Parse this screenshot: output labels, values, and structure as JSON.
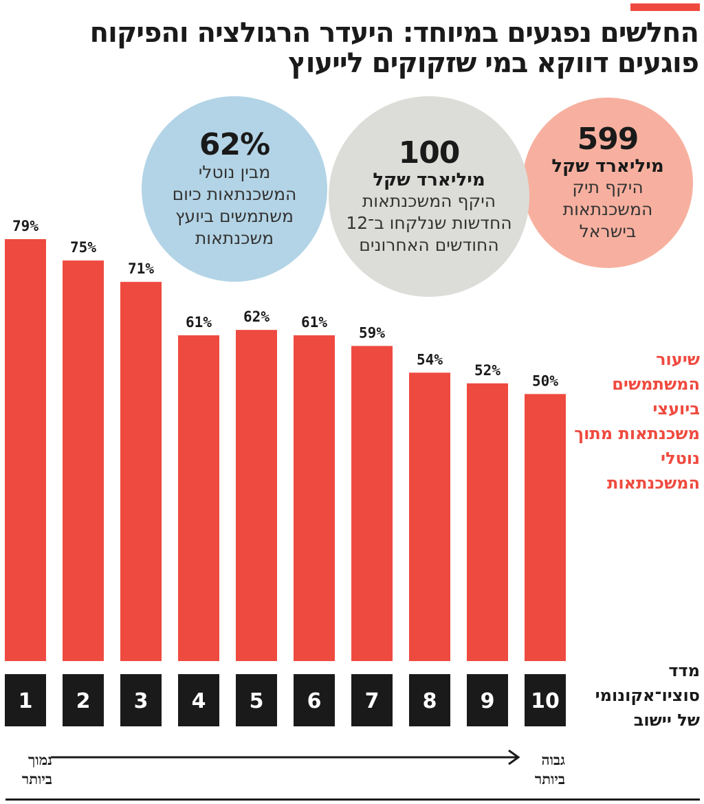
{
  "title": "החלשים נפגעים במיוחד: היעדר הרגולציה והפיקוח פוגעים דווקא במי שזקוקים לייעוץ",
  "colors": {
    "accent": "#ef4a3f",
    "bar": "#ef4a3f",
    "box": "#1a1a1a"
  },
  "stats": {
    "portfolio": {
      "value": "599",
      "unit": "מיליארד שקל",
      "desc": "היקף תיק המשכנתאות בישראל"
    },
    "new_mortgages": {
      "value": "100",
      "unit": "מיליארד שקל",
      "desc": "היקף המשכנתאות החדשות שנלקחו ב־12 החודשים האחרונים"
    },
    "advisor_use": {
      "value": "62%",
      "desc": "מבין נוטלי המשכנתאות כיום משתמשים ביועץ משכנתאות"
    }
  },
  "legend": "שיעור המשתמשים ביועצי משכנתאות מתוך נוטלי המשכנתאות",
  "x_axis": {
    "label": "מדד סוציו־אקונומי של יישוב",
    "low_label": "נמוך ביותר",
    "high_label": "גבוה ביותר"
  },
  "chart_data": {
    "type": "bar",
    "title": "שיעור המשתמשים ביועצי משכנתאות מתוך נוטלי המשכנתאות",
    "xlabel": "מדד סוציו־אקונומי של יישוב",
    "ylabel": "",
    "categories": [
      "1",
      "2",
      "3",
      "4",
      "5",
      "6",
      "7",
      "8",
      "9",
      "10"
    ],
    "values": [
      79,
      75,
      71,
      61,
      62,
      61,
      59,
      54,
      52,
      50
    ],
    "value_labels": [
      "79%",
      "75%",
      "71%",
      "61%",
      "62%",
      "61%",
      "59%",
      "54%",
      "52%",
      "50%"
    ],
    "ylim": [
      0,
      79
    ],
    "grid": false
  }
}
